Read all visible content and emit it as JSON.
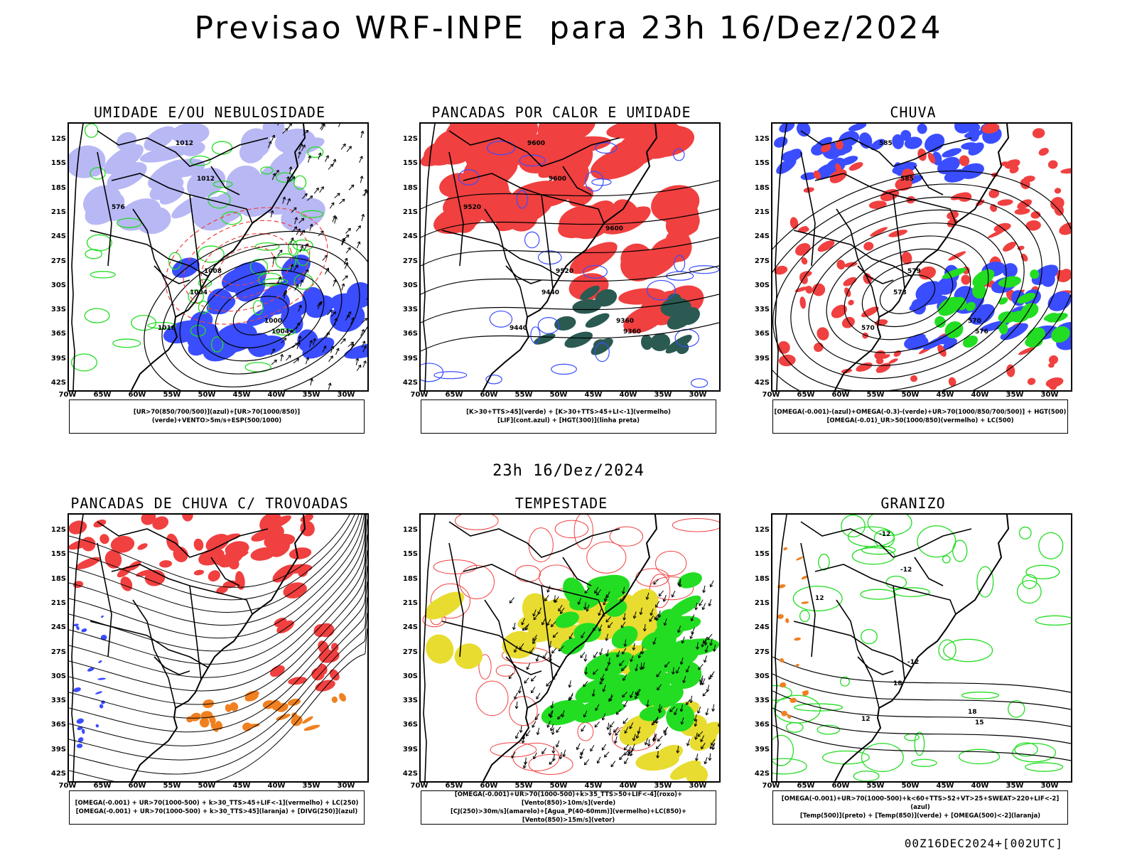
{
  "header": {
    "title": "Previsao WRF-INPE  para 23h 16/Dez/2024",
    "mid_title": "23h 16/Dez/2024",
    "footer": "00Z16DEC2024+[002UTC]"
  },
  "axes": {
    "lat_labels": [
      "12S",
      "15S",
      "18S",
      "21S",
      "24S",
      "27S",
      "30S",
      "33S",
      "36S",
      "39S",
      "42S"
    ],
    "lon_labels": [
      "70W",
      "65W",
      "60W",
      "55W",
      "50W",
      "45W",
      "40W",
      "35W",
      "30W"
    ]
  },
  "panels": [
    {
      "id": "umidade",
      "title": "UMIDADE E/OU NEBULOSIDADE",
      "legend": [
        "[UR>70(850/700/500)](azul)+[UR>70(1000/850)](verde)+VENTO>5m/s+ESP(500/1000)"
      ],
      "contour_labels": [
        "1012",
        "1012",
        "1008",
        "1004",
        "1000",
        "1004",
        "1016",
        "576"
      ]
    },
    {
      "id": "pancadas-calor",
      "title": "PANCADAS POR CALOR E UMIDADE",
      "legend": [
        "[K>30+TTS>45](verde) + [K>30+TTS>45+LI<-1](vermelho)",
        "[LIF](cont.azul) + [HGT(300)](linha preta)"
      ],
      "contour_labels": [
        "9600",
        "9600",
        "9520",
        "9440",
        "9360",
        "9360",
        "9440",
        "9520",
        "9600"
      ]
    },
    {
      "id": "chuva",
      "title": "CHUVA",
      "legend": [
        "[OMEGA(-0.001)-(azul)+OMEGA(-0.3)-(verde)+UR>70(1000/850/700/500)] + HGT(500)",
        "[OMEGA(-0.01)_UR>50(1000/850)(vermelho) + LC(500)"
      ],
      "contour_labels": [
        "585",
        "585",
        "579",
        "573",
        "570",
        "576",
        "570"
      ]
    },
    {
      "id": "pancadas-trovoadas",
      "title": "PANCADAS DE CHUVA C/ TROVOADAS",
      "legend": [
        "[OMEGA(-0.001) + UR>70(1000-500) + k>30_TTS>45+LIF<-1](vermelho) + LC(250)",
        "[OMEGA(-0.001) + UR>70(1000-500) + k>30_TTS>45](laranja) + [DIVG(250)](azul)"
      ],
      "contour_labels": []
    },
    {
      "id": "tempestade",
      "title": "TEMPESTADE",
      "legend": [
        "[OMEGA(-0.001)+UR>70(1000-500)+k>35_TTS>50+LIF<-4](roxo)+[Vento(850)>10m/s](verde)",
        "[CJ(250)>30m/s](amarelo)+[Agua_P(40-60mm)](vermelho)+LC(850)+[Vento(850)>15m/s](vetor)"
      ],
      "contour_labels": []
    },
    {
      "id": "granizo",
      "title": "GRANIZO",
      "legend": [
        "[OMEGA(-0.001)+UR>70(1000-500)+k<60+TTS>52+VT>25+SWEAT>220+LIF<-2](azul)",
        "[Temp(500)](preto) + [Temp(850)](verde) + [OMEGA(500)<-2](laranja)"
      ],
      "contour_labels": [
        "-12",
        "-12",
        "-12",
        "18",
        "18",
        "15",
        "12",
        "12"
      ]
    }
  ],
  "colors": {
    "azul": "#3a4dff",
    "azul_claro": "#b8b8f5",
    "verde": "#22dd22",
    "vermelho": "#f04040",
    "laranja": "#f08020",
    "amarelo": "#e8dc30",
    "roxo": "#b020c0",
    "verde_escuro": "#2a5a52"
  }
}
